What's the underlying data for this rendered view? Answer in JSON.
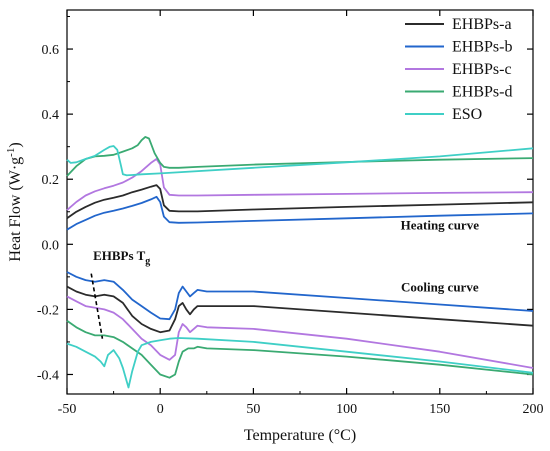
{
  "chart_data": {
    "type": "line",
    "xlabel": "Temperature (°C)",
    "ylabel": "Heat Flow (W·g",
    "ylabel_sup": "-1",
    "ylabel_end": ")",
    "xlim": [
      -50,
      200
    ],
    "ylim": [
      -0.46,
      0.72
    ],
    "x_ticks": [
      -50,
      0,
      50,
      100,
      150,
      200
    ],
    "x_tick_labels": [
      "-50",
      "0",
      "50",
      "100",
      "150",
      "200"
    ],
    "y_ticks": [
      -0.4,
      -0.2,
      0.0,
      0.2,
      0.4,
      0.6
    ],
    "y_tick_labels": [
      "-0.4",
      "-0.2",
      "0.0",
      "0.2",
      "0.4",
      "0.6"
    ],
    "grid": false,
    "legend_position": "top-right",
    "annotations": [
      {
        "text": "Heating curve",
        "x": 150,
        "y": 0.045
      },
      {
        "text": "Cooling curve",
        "x": 150,
        "y": -0.145
      },
      {
        "text": "EHBPs T",
        "sub": "g",
        "x": -36,
        "y": -0.048
      }
    ],
    "tg_marker": {
      "x": [
        -37,
        -31
      ],
      "y": [
        -0.09,
        -0.29
      ]
    },
    "series": [
      {
        "name": "EHBPs-a",
        "color": "#2b2b2b",
        "segments": [
          {
            "x": [
              -50,
              -45,
              -40,
              -35,
              -30,
              -25,
              -20,
              -15,
              -10,
              -5,
              -2,
              0,
              2,
              5,
              10,
              20,
              50,
              100,
              150,
              200
            ],
            "y": [
              0.08,
              0.1,
              0.115,
              0.128,
              0.137,
              0.143,
              0.15,
              0.16,
              0.168,
              0.177,
              0.182,
              0.17,
              0.12,
              0.103,
              0.101,
              0.101,
              0.107,
              0.115,
              0.122,
              0.129
            ]
          },
          {
            "x": [
              -50,
              -45,
              -40,
              -35,
              -30,
              -25,
              -20,
              -15,
              -10,
              -5,
              0,
              5,
              8,
              10,
              12,
              14,
              16,
              18,
              20,
              25,
              50,
              100,
              150,
              200
            ],
            "y": [
              -0.13,
              -0.145,
              -0.155,
              -0.16,
              -0.155,
              -0.16,
              -0.18,
              -0.22,
              -0.245,
              -0.26,
              -0.27,
              -0.265,
              -0.23,
              -0.19,
              -0.18,
              -0.2,
              -0.215,
              -0.2,
              -0.19,
              -0.19,
              -0.19,
              -0.21,
              -0.23,
              -0.25
            ]
          }
        ]
      },
      {
        "name": "EHBPs-b",
        "color": "#2266cc",
        "segments": [
          {
            "x": [
              -50,
              -45,
              -40,
              -35,
              -30,
              -25,
              -20,
              -15,
              -10,
              -5,
              -2,
              0,
              2,
              5,
              10,
              20,
              50,
              100,
              150,
              200
            ],
            "y": [
              0.045,
              0.062,
              0.075,
              0.088,
              0.097,
              0.103,
              0.11,
              0.118,
              0.127,
              0.138,
              0.146,
              0.13,
              0.085,
              0.068,
              0.066,
              0.067,
              0.072,
              0.08,
              0.088,
              0.095
            ]
          },
          {
            "x": [
              -50,
              -45,
              -40,
              -35,
              -30,
              -25,
              -20,
              -15,
              -10,
              -5,
              0,
              5,
              8,
              10,
              12,
              14,
              16,
              18,
              20,
              25,
              50,
              100,
              150,
              200
            ],
            "y": [
              -0.085,
              -0.1,
              -0.11,
              -0.115,
              -0.11,
              -0.115,
              -0.14,
              -0.17,
              -0.19,
              -0.21,
              -0.228,
              -0.23,
              -0.2,
              -0.15,
              -0.13,
              -0.145,
              -0.16,
              -0.15,
              -0.14,
              -0.145,
              -0.145,
              -0.165,
              -0.185,
              -0.205
            ]
          }
        ]
      },
      {
        "name": "EHBPs-c",
        "color": "#b277e0",
        "segments": [
          {
            "x": [
              -50,
              -45,
              -40,
              -35,
              -30,
              -25,
              -20,
              -15,
              -10,
              -5,
              -2,
              0,
              2,
              5,
              10,
              20,
              50,
              100,
              150,
              200
            ],
            "y": [
              0.105,
              0.13,
              0.15,
              0.163,
              0.172,
              0.18,
              0.19,
              0.205,
              0.225,
              0.25,
              0.262,
              0.245,
              0.175,
              0.152,
              0.15,
              0.15,
              0.152,
              0.155,
              0.158,
              0.16
            ]
          },
          {
            "x": [
              -50,
              -45,
              -40,
              -35,
              -30,
              -25,
              -20,
              -15,
              -10,
              -5,
              0,
              5,
              8,
              10,
              12,
              14,
              16,
              18,
              20,
              25,
              50,
              100,
              150,
              200
            ],
            "y": [
              -0.16,
              -0.175,
              -0.19,
              -0.195,
              -0.2,
              -0.21,
              -0.23,
              -0.26,
              -0.29,
              -0.31,
              -0.34,
              -0.355,
              -0.34,
              -0.27,
              -0.245,
              -0.255,
              -0.27,
              -0.26,
              -0.25,
              -0.255,
              -0.26,
              -0.29,
              -0.33,
              -0.38
            ]
          }
        ]
      },
      {
        "name": "EHBPs-d",
        "color": "#3aaa72",
        "segments": [
          {
            "x": [
              -50,
              -45,
              -40,
              -35,
              -30,
              -25,
              -20,
              -15,
              -12,
              -10,
              -8,
              -6,
              -5,
              -3,
              0,
              2,
              5,
              10,
              20,
              50,
              100,
              150,
              200
            ],
            "y": [
              0.21,
              0.24,
              0.262,
              0.27,
              0.272,
              0.275,
              0.285,
              0.295,
              0.305,
              0.32,
              0.33,
              0.325,
              0.31,
              0.28,
              0.25,
              0.238,
              0.235,
              0.235,
              0.238,
              0.245,
              0.253,
              0.26,
              0.265
            ]
          },
          {
            "x": [
              -50,
              -45,
              -40,
              -35,
              -30,
              -25,
              -20,
              -15,
              -10,
              -5,
              0,
              5,
              8,
              10,
              12,
              15,
              18,
              20,
              25,
              50,
              100,
              150,
              200
            ],
            "y": [
              -0.235,
              -0.255,
              -0.27,
              -0.28,
              -0.28,
              -0.285,
              -0.3,
              -0.32,
              -0.34,
              -0.37,
              -0.4,
              -0.41,
              -0.4,
              -0.36,
              -0.33,
              -0.32,
              -0.32,
              -0.315,
              -0.32,
              -0.325,
              -0.345,
              -0.37,
              -0.4
            ]
          }
        ]
      },
      {
        "name": "ESO",
        "color": "#3fcfc6",
        "segments": [
          {
            "x": [
              -50,
              -48,
              -45,
              -40,
              -35,
              -30,
              -27,
              -25,
              -23,
              -21,
              -20,
              -18,
              -15,
              -10,
              0,
              50,
              100,
              150,
              200
            ],
            "y": [
              0.26,
              0.25,
              0.252,
              0.262,
              0.272,
              0.29,
              0.3,
              0.302,
              0.29,
              0.24,
              0.215,
              0.212,
              0.213,
              0.215,
              0.218,
              0.235,
              0.252,
              0.27,
              0.295
            ]
          },
          {
            "x": [
              -50,
              -45,
              -40,
              -35,
              -32,
              -30,
              -28,
              -25,
              -22,
              -20,
              -18,
              -17,
              -15,
              -12,
              -10,
              -5,
              0,
              5,
              10,
              20,
              50,
              100,
              150,
              200
            ],
            "y": [
              -0.305,
              -0.315,
              -0.33,
              -0.345,
              -0.36,
              -0.375,
              -0.34,
              -0.325,
              -0.35,
              -0.38,
              -0.42,
              -0.44,
              -0.39,
              -0.33,
              -0.31,
              -0.3,
              -0.295,
              -0.29,
              -0.288,
              -0.29,
              -0.3,
              -0.33,
              -0.36,
              -0.395
            ]
          }
        ]
      }
    ]
  }
}
